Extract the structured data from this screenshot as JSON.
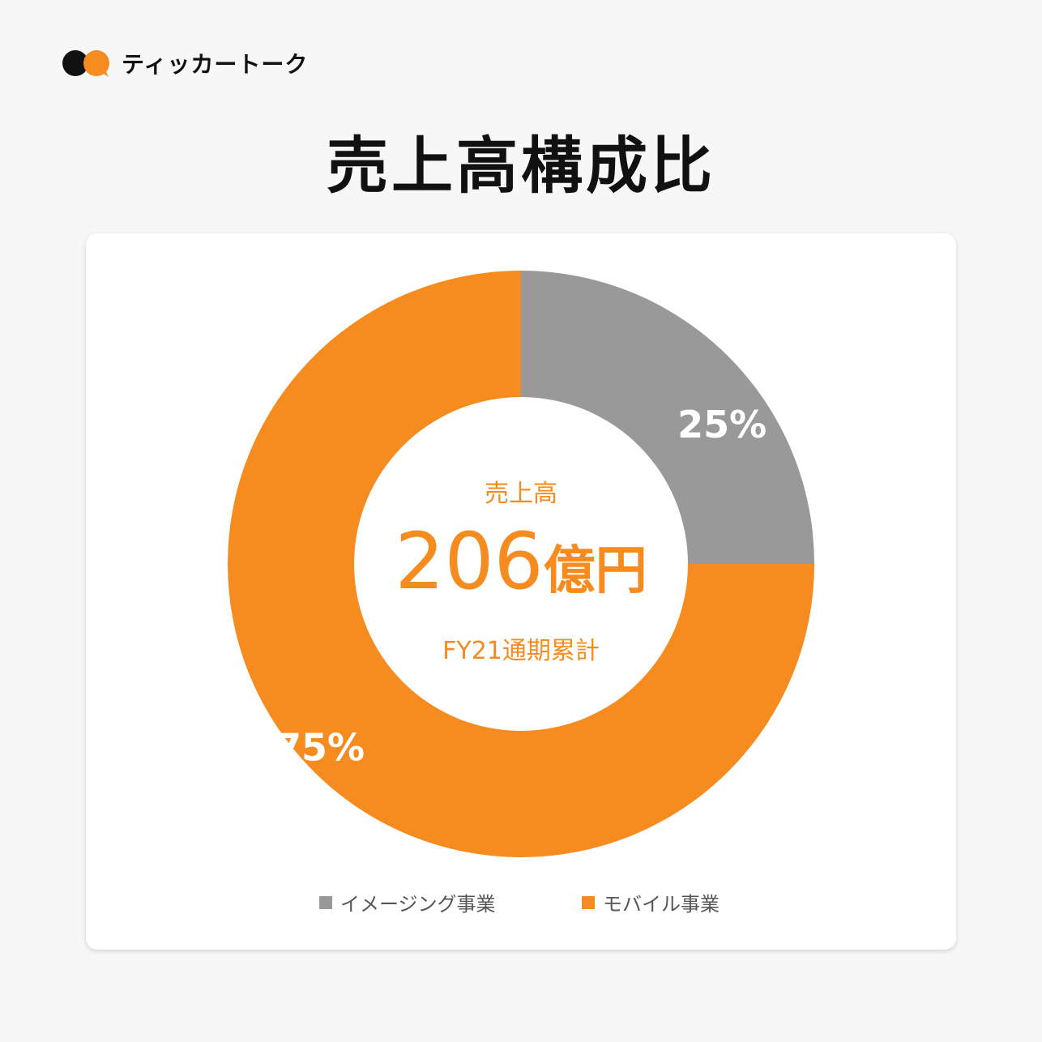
{
  "brand": {
    "name": "ティッカートーク",
    "colors": {
      "dark": "#111111",
      "accent": "#f68b1f"
    }
  },
  "title": "売上高構成比",
  "center": {
    "label": "売上高",
    "value": "206",
    "unit": "億円",
    "sub": "FY21通期累計"
  },
  "chart_data": {
    "type": "pie",
    "donut": true,
    "start_angle_deg": 0,
    "direction": "clockwise",
    "labels": [
      "イメージング事業",
      "モバイル事業"
    ],
    "values": [
      25,
      75
    ],
    "value_labels": [
      "25%",
      "75%"
    ],
    "colors": [
      "#999999",
      "#f68b1f"
    ],
    "legend_position": "bottom"
  }
}
